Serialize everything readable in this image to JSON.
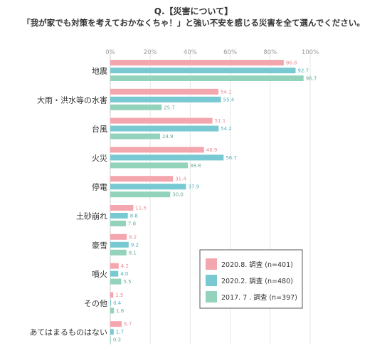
{
  "title": "Q.【災害について】",
  "subtitle": "「我が家でも対策を考えておかなくちゃ！」と強い不安を感じる災害を全て選んでください。",
  "chart_data": {
    "type": "bar",
    "orientation": "horizontal",
    "categories": [
      "地震",
      "大雨・洪水等の水害",
      "台風",
      "火災",
      "停電",
      "土砂崩れ",
      "豪雪",
      "噴火",
      "その他",
      "あてはまるものはない"
    ],
    "series": [
      {
        "name": "2020.8. 調査 (n=401)",
        "color": "#f4a6ae",
        "label_color": "#e98a95",
        "values": [
          86.8,
          54.1,
          51.1,
          46.9,
          31.4,
          11.5,
          8.2,
          4.2,
          1.5,
          5.7
        ]
      },
      {
        "name": "2020.2. 調査 (n=480)",
        "color": "#78c9d2",
        "label_color": "#4fb1bd",
        "values": [
          92.7,
          55.4,
          54.2,
          56.7,
          37.9,
          8.8,
          9.2,
          4.0,
          0.4,
          1.7
        ]
      },
      {
        "name": "2017. 7 . 調査 (n=397)",
        "color": "#93d3bb",
        "label_color": "#6aab92",
        "values": [
          96.7,
          25.7,
          24.9,
          38.8,
          30.0,
          7.8,
          8.1,
          5.5,
          1.8,
          0.3
        ]
      }
    ],
    "xlim": [
      0,
      100
    ],
    "ticks": [
      "0%",
      "20%",
      "40%",
      "60%",
      "80%",
      "100%"
    ],
    "grid": true,
    "legend_position": "bottom-right"
  }
}
